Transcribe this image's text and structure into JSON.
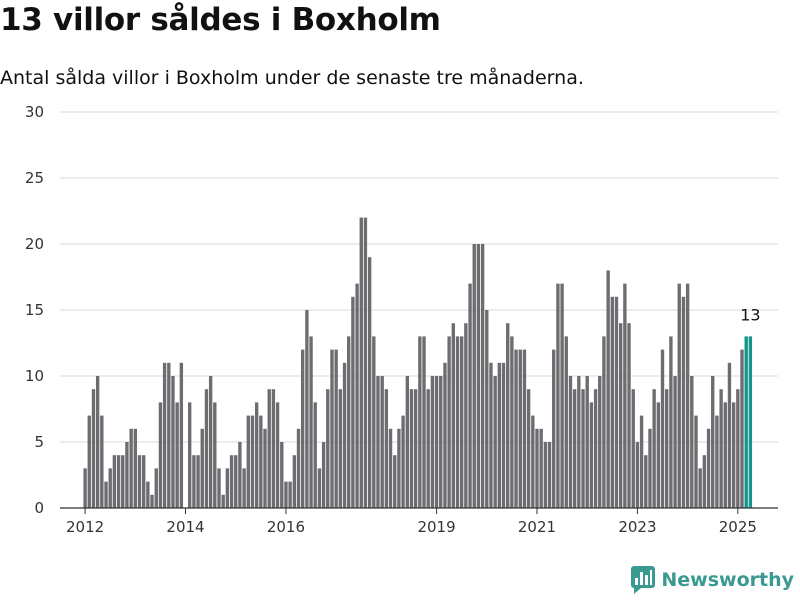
{
  "header": {
    "title": "13 villor såldes i Boxholm",
    "subtitle": "Antal sålda villor i Boxholm under de senaste tre månaderna."
  },
  "branding": {
    "name": "Newsworthy",
    "color": "#3a9a91"
  },
  "colors": {
    "bar": "#6d6c70",
    "highlight": "#16958b",
    "grid": "#d9d9d9",
    "axis": "#333333"
  },
  "chart_data": {
    "type": "bar",
    "title": "",
    "xlabel": "",
    "ylabel": "",
    "ylim": [
      0,
      30
    ],
    "yticks": [
      0,
      5,
      10,
      15,
      20,
      25,
      30
    ],
    "xlim": [
      2011.5,
      2025.8
    ],
    "xticks": [
      2012,
      2014,
      2016,
      2019,
      2021,
      2023,
      2025
    ],
    "bar_width": 0.083,
    "x": [
      2012.0,
      2012.083,
      2012.167,
      2012.25,
      2012.333,
      2012.417,
      2012.5,
      2012.583,
      2012.667,
      2012.75,
      2012.833,
      2012.917,
      2013.0,
      2013.083,
      2013.167,
      2013.25,
      2013.333,
      2013.417,
      2013.5,
      2013.583,
      2013.667,
      2013.75,
      2013.833,
      2013.917,
      2014.0,
      2014.083,
      2014.167,
      2014.25,
      2014.333,
      2014.417,
      2014.5,
      2014.583,
      2014.667,
      2014.75,
      2014.833,
      2014.917,
      2015.0,
      2015.083,
      2015.167,
      2015.25,
      2015.333,
      2015.417,
      2015.5,
      2015.583,
      2015.667,
      2015.75,
      2015.833,
      2015.917,
      2016.0,
      2016.083,
      2016.167,
      2016.25,
      2016.333,
      2016.417,
      2016.5,
      2016.583,
      2016.667,
      2016.75,
      2016.833,
      2016.917,
      2017.0,
      2017.083,
      2017.167,
      2017.25,
      2017.333,
      2017.417,
      2017.5,
      2017.583,
      2017.667,
      2017.75,
      2017.833,
      2017.917,
      2018.0,
      2018.083,
      2018.167,
      2018.25,
      2018.333,
      2018.417,
      2018.5,
      2018.583,
      2018.667,
      2018.75,
      2018.833,
      2018.917,
      2019.0,
      2019.083,
      2019.167,
      2019.25,
      2019.333,
      2019.417,
      2019.5,
      2019.583,
      2019.667,
      2019.75,
      2019.833,
      2019.917,
      2020.0,
      2020.083,
      2020.167,
      2020.25,
      2020.333,
      2020.417,
      2020.5,
      2020.583,
      2020.667,
      2020.75,
      2020.833,
      2020.917,
      2021.0,
      2021.083,
      2021.167,
      2021.25,
      2021.333,
      2021.417,
      2021.5,
      2021.583,
      2021.667,
      2021.75,
      2021.833,
      2021.917,
      2022.0,
      2022.083,
      2022.167,
      2022.25,
      2022.333,
      2022.417,
      2022.5,
      2022.583,
      2022.667,
      2022.75,
      2022.833,
      2022.917,
      2023.0,
      2023.083,
      2023.167,
      2023.25,
      2023.333,
      2023.417,
      2023.5,
      2023.583,
      2023.667,
      2023.75,
      2023.833,
      2023.917,
      2024.0,
      2024.083,
      2024.167,
      2024.25,
      2024.333,
      2024.417,
      2024.5,
      2024.583,
      2024.667,
      2024.75,
      2024.833,
      2024.917,
      2025.0,
      2025.083,
      2025.167,
      2025.25
    ],
    "values": [
      3,
      7,
      9,
      10,
      7,
      2,
      3,
      4,
      4,
      4,
      5,
      6,
      6,
      4,
      4,
      2,
      1,
      3,
      8,
      11,
      11,
      10,
      8,
      11,
      0,
      8,
      4,
      4,
      6,
      9,
      10,
      8,
      3,
      1,
      3,
      4,
      4,
      5,
      3,
      7,
      7,
      8,
      7,
      6,
      9,
      9,
      8,
      5,
      2,
      2,
      4,
      6,
      12,
      15,
      13,
      8,
      3,
      5,
      9,
      12,
      12,
      9,
      11,
      13,
      16,
      17,
      22,
      22,
      19,
      13,
      10,
      10,
      9,
      6,
      4,
      6,
      7,
      10,
      9,
      9,
      13,
      13,
      9,
      10,
      10,
      10,
      11,
      13,
      14,
      13,
      13,
      14,
      17,
      20,
      20,
      20,
      15,
      11,
      10,
      11,
      11,
      14,
      13,
      12,
      12,
      12,
      9,
      7,
      6,
      6,
      5,
      5,
      12,
      17,
      17,
      13,
      10,
      9,
      10,
      9,
      10,
      8,
      9,
      10,
      13,
      18,
      16,
      16,
      14,
      17,
      14,
      9,
      5,
      7,
      4,
      6,
      9,
      8,
      12,
      9,
      13,
      10,
      17,
      16,
      17,
      10,
      7,
      3,
      4,
      6,
      10,
      7,
      9,
      8,
      11,
      8,
      9,
      12,
      13,
      13
    ],
    "highlight_last": 2,
    "annotations": [
      {
        "x": 2025.25,
        "text": "13"
      }
    ]
  }
}
